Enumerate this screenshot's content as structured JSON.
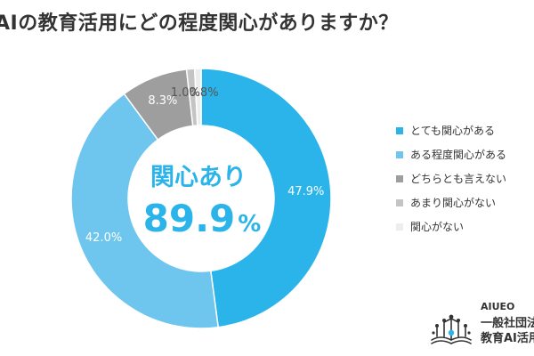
{
  "chart_data": {
    "type": "pie",
    "title": "AIの教育活用にどの程度関心がありますか？",
    "center_label": "関心あり",
    "center_value": "89.9",
    "center_unit": "%",
    "categories": [
      "とても関心がある",
      "ある程度関心がある",
      "どちらとも言えない",
      "あまり関心がない",
      "関心がない"
    ],
    "values": [
      47.9,
      42.0,
      8.3,
      1.0,
      0.8
    ],
    "data_labels": [
      "47.9%",
      "42.0%",
      "8.3%",
      "1.0%",
      "0.8%"
    ],
    "colors": [
      "#2ab4ea",
      "#6ec6ee",
      "#9e9e9e",
      "#c4c4c4",
      "#ededed"
    ],
    "legend_position": "right"
  },
  "logo": {
    "brand": "AIUEO",
    "line1": "一般社団法",
    "line2": "教育AI活用"
  }
}
